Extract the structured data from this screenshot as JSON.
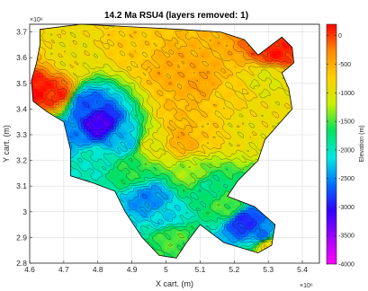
{
  "chart_data": {
    "type": "heatmap",
    "title": "14.2 Ma   RSU4    (layers removed: 1)",
    "xlabel": "X cart. (m)",
    "ylabel": "Y cart. (m)",
    "x_exponent": "×10⁶",
    "y_exponent": "×10⁶",
    "xlim": [
      4.6,
      5.45
    ],
    "ylim": [
      2.8,
      3.73
    ],
    "x_ticks": [
      4.6,
      4.7,
      4.8,
      4.9,
      5.0,
      5.1,
      5.2,
      5.3,
      5.4
    ],
    "x_tick_labels": [
      "4.6",
      "4.7",
      "4.8",
      "4.9",
      "5",
      "5.1",
      "5.2",
      "5.3",
      "5.4"
    ],
    "y_ticks": [
      2.8,
      2.9,
      3.0,
      3.1,
      3.2,
      3.3,
      3.4,
      3.5,
      3.6,
      3.7
    ],
    "y_tick_labels": [
      "2.8",
      "2.9",
      "3",
      "3.1",
      "3.2",
      "3.3",
      "3.4",
      "3.5",
      "3.6",
      "3.7"
    ],
    "grid": true,
    "colorbar": {
      "label": "Elevation (m)",
      "range": [
        -4000,
        200
      ],
      "ticks": [
        0,
        -500,
        -1000,
        -1500,
        -2000,
        -2500,
        -3000,
        -3500,
        -4000
      ],
      "tick_labels": [
        "0",
        "-500",
        "-1000",
        "-1500",
        "-2000",
        "-2500",
        "-3000",
        "-3500",
        "-4000"
      ],
      "colors": [
        "#ff0000",
        "#ff8a00",
        "#ffd000",
        "#c8f000",
        "#00e060",
        "#00e8e0",
        "#0070ff",
        "#3000ff",
        "#a000ff",
        "#ff00ff"
      ]
    },
    "regions": [
      {
        "x": 4.72,
        "y": 3.6,
        "v": -900
      },
      {
        "x": 4.9,
        "y": 3.64,
        "v": -700
      },
      {
        "x": 5.02,
        "y": 3.55,
        "v": -500
      },
      {
        "x": 5.1,
        "y": 3.5,
        "v": -450
      },
      {
        "x": 5.18,
        "y": 3.45,
        "v": -750
      },
      {
        "x": 5.3,
        "y": 3.52,
        "v": -1000
      },
      {
        "x": 5.32,
        "y": 3.62,
        "v": 100
      },
      {
        "x": 4.62,
        "y": 3.47,
        "v": 150
      },
      {
        "x": 4.68,
        "y": 3.46,
        "v": 50
      },
      {
        "x": 4.76,
        "y": 3.42,
        "v": -2700
      },
      {
        "x": 4.8,
        "y": 3.34,
        "v": -3200
      },
      {
        "x": 4.78,
        "y": 3.2,
        "v": -2000
      },
      {
        "x": 4.72,
        "y": 3.3,
        "v": -2500
      },
      {
        "x": 4.88,
        "y": 3.28,
        "v": -2300
      },
      {
        "x": 4.9,
        "y": 3.16,
        "v": -1600
      },
      {
        "x": 4.96,
        "y": 3.26,
        "v": -1000
      },
      {
        "x": 5.05,
        "y": 3.28,
        "v": -500
      },
      {
        "x": 5.05,
        "y": 3.4,
        "v": -600
      },
      {
        "x": 5.12,
        "y": 3.32,
        "v": -700
      },
      {
        "x": 5.22,
        "y": 3.33,
        "v": -900
      },
      {
        "x": 5.08,
        "y": 3.15,
        "v": -1300
      },
      {
        "x": 5.12,
        "y": 3.1,
        "v": -1800
      },
      {
        "x": 4.95,
        "y": 3.05,
        "v": -2500
      },
      {
        "x": 5.0,
        "y": 2.98,
        "v": -2200
      },
      {
        "x": 5.02,
        "y": 2.9,
        "v": -1500
      },
      {
        "x": 5.18,
        "y": 3.02,
        "v": -1500
      },
      {
        "x": 5.23,
        "y": 2.96,
        "v": -2900
      },
      {
        "x": 5.28,
        "y": 2.91,
        "v": -2600
      },
      {
        "x": 5.3,
        "y": 2.87,
        "v": -900
      }
    ]
  }
}
